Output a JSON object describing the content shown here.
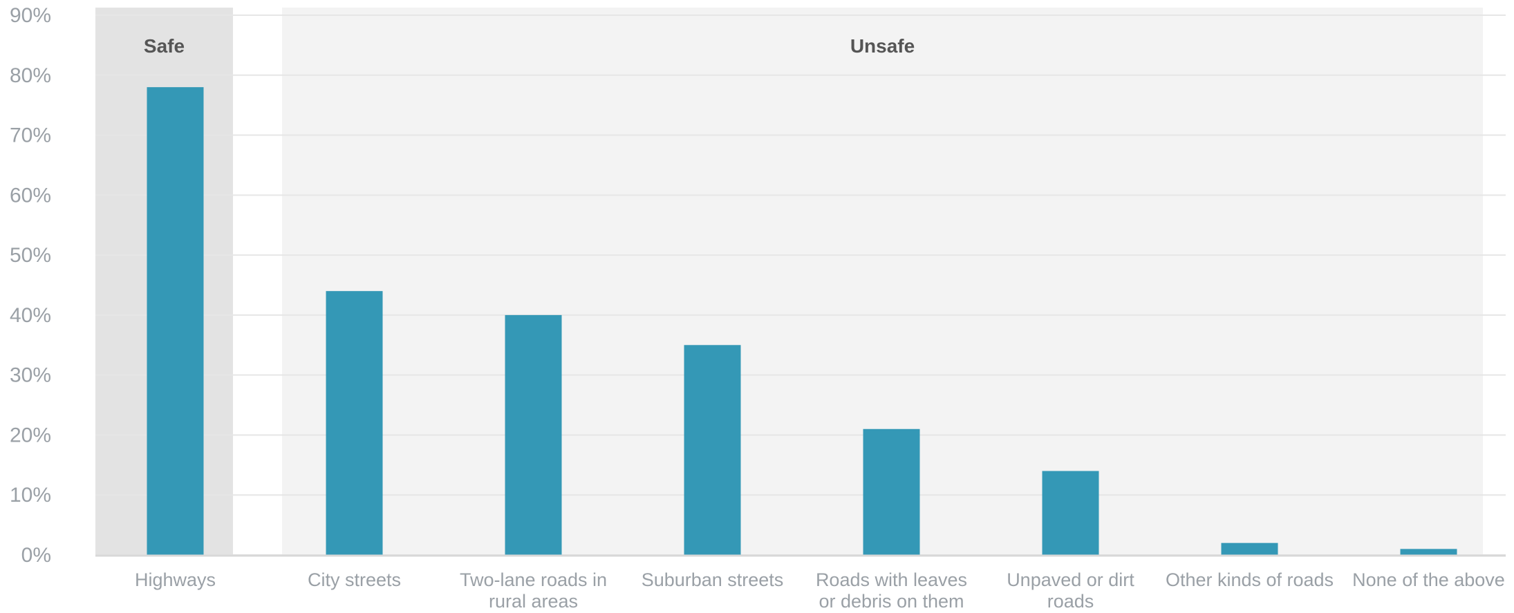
{
  "chart_data": {
    "type": "bar",
    "categories": [
      [
        "Highways"
      ],
      [
        "City streets"
      ],
      [
        "Two-lane roads in",
        "rural areas"
      ],
      [
        "Suburban streets"
      ],
      [
        "Roads with leaves",
        "or debris on them"
      ],
      [
        "Unpaved or dirt",
        "roads"
      ],
      [
        "Other kinds of roads"
      ],
      [
        "None of the above"
      ]
    ],
    "values": [
      78,
      44,
      40,
      35,
      21,
      14,
      2,
      1
    ],
    "ylim": [
      0,
      90
    ],
    "yticks": [
      0,
      10,
      20,
      30,
      40,
      50,
      60,
      70,
      80,
      90
    ],
    "ytick_labels": [
      "0%",
      "10%",
      "20%",
      "30%",
      "40%",
      "50%",
      "60%",
      "70%",
      "80%",
      "90%"
    ],
    "grid": true,
    "groups": [
      {
        "label": "Safe",
        "start": 0,
        "end": 0,
        "color": "#e3e3e3"
      },
      {
        "label": "Unsafe",
        "start": 1,
        "end": 7,
        "color": "#f3f3f3"
      }
    ],
    "bar_color": "#3498b6",
    "grid_color": "#e6e6e6",
    "axis_color": "#d8d8d8"
  }
}
